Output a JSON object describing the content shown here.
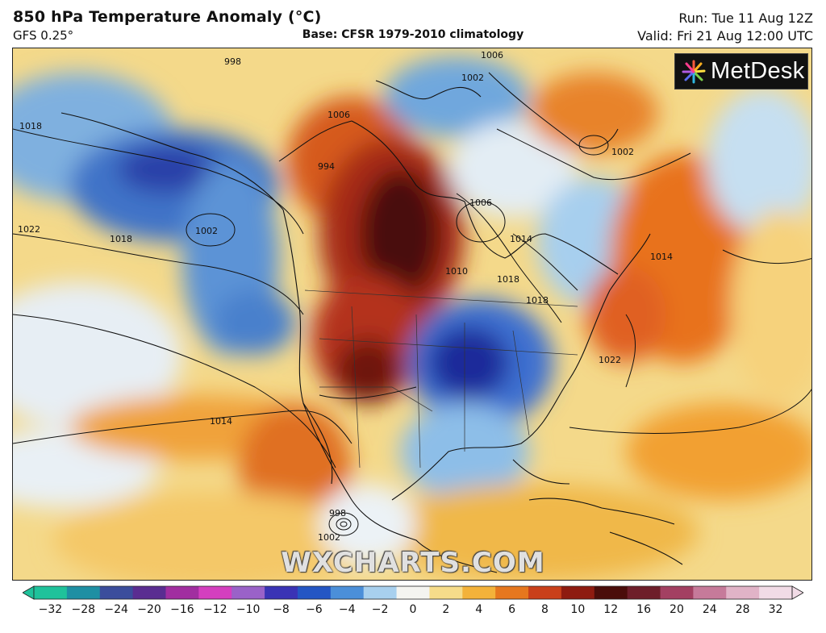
{
  "header": {
    "title": "850 hPa Temperature Anomaly (°C)",
    "model": "GFS 0.25°",
    "base": "Base: CFSR 1979-2010 climatology",
    "run": "Run: Tue 11 Aug 12Z",
    "valid": "Valid: Fri 21 Aug 12:00 UTC"
  },
  "logo": {
    "text": "MetDesk",
    "icon": "starburst-icon"
  },
  "watermark": "WXCHARTS.COM",
  "isobars": [
    "998",
    "1018",
    "1006",
    "1002",
    "994",
    "1022",
    "1018",
    "1002",
    "1006",
    "1002",
    "1006",
    "1014",
    "1018",
    "1010",
    "1022",
    "1014",
    "1018",
    "1014",
    "998",
    "1002"
  ],
  "colorbar": {
    "ticks": [
      "−32",
      "−28",
      "−24",
      "−20",
      "−16",
      "−12",
      "−10",
      "−8",
      "−6",
      "−4",
      "−2",
      "0",
      "2",
      "4",
      "6",
      "8",
      "10",
      "12",
      "16",
      "20",
      "24",
      "28",
      "32"
    ],
    "colors": [
      "#1fc29b",
      "#1e8fa3",
      "#3b4d9c",
      "#5a2d91",
      "#a12ea0",
      "#d43fbf",
      "#9a62c8",
      "#3a33b5",
      "#2456c4",
      "#4b8fd9",
      "#a8d0ee",
      "#f4f4f0",
      "#f6dc8a",
      "#f3b23a",
      "#e6771e",
      "#c9401a",
      "#8e1b10",
      "#4a0d0a",
      "#6e1e2a",
      "#a34062",
      "#c67a9a",
      "#e1b3c7",
      "#f1dbe6"
    ]
  },
  "colors": {
    "warm_anomaly": "#c9401a",
    "extreme_warm": "#3a0a08",
    "cold_anomaly": "#2456c4",
    "extreme_cold": "#1a2a9a",
    "neutral": "#e9eef2",
    "slight_warm": "#f4d98a"
  }
}
